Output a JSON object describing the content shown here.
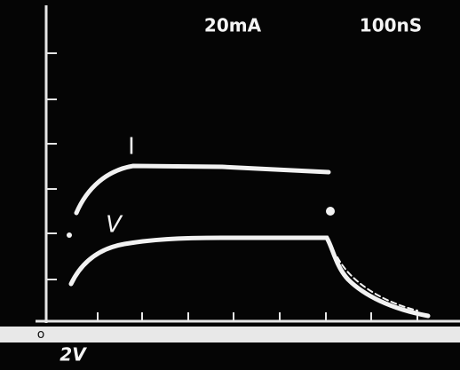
{
  "labels": {
    "current_scale": "20mA",
    "time_scale": "100nS",
    "current_trace": "I",
    "voltage_trace": "V",
    "origin": "o",
    "voltage_scale": "2V"
  }
}
